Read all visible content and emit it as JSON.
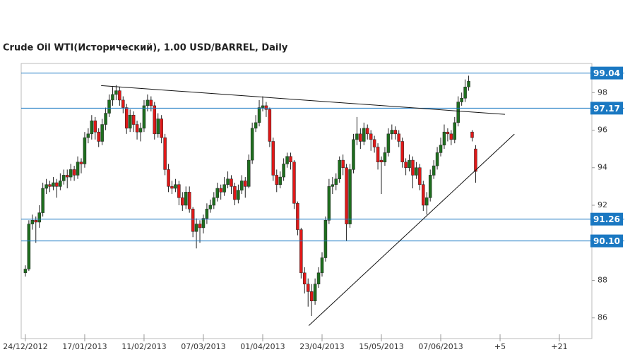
{
  "chart_data": {
    "type": "candlestick",
    "title": "Crude Oil WTI(Исторический), 1.00 USD/BARREL, Daily",
    "open": [
      88.4,
      88.6,
      91.0,
      91.2,
      91.1,
      91.6,
      92.9,
      93.1,
      93.0,
      93.2,
      93.0,
      93.3,
      93.6,
      93.5,
      93.9,
      93.6,
      94.3,
      94.2,
      95.6,
      95.8,
      96.5,
      95.9,
      95.4,
      96.3,
      96.9,
      97.6,
      97.9,
      98.1,
      97.6,
      97.2,
      96.1,
      96.8,
      96.3,
      95.9,
      96.1,
      97.3,
      97.6,
      97.3,
      95.8,
      96.6,
      95.6,
      93.9,
      93.0,
      92.9,
      93.1,
      92.4,
      92.0,
      92.7,
      91.8,
      90.6,
      91.0,
      90.8,
      91.3,
      91.8,
      92.0,
      92.4,
      92.9,
      92.7,
      93.1,
      93.4,
      93.0,
      92.3,
      92.8,
      93.3,
      93.0,
      94.4,
      96.1,
      96.4,
      97.2,
      97.3,
      97.1,
      95.4,
      93.6,
      93.1,
      93.5,
      94.2,
      94.6,
      94.3,
      92.1,
      90.7,
      88.4,
      87.8,
      87.4,
      86.9,
      87.8,
      88.4,
      89.2,
      91.2,
      93.0,
      93.1,
      93.4,
      94.4,
      94.0,
      91.0,
      93.9,
      95.5,
      95.8,
      95.4,
      96.1,
      95.8,
      95.5,
      95.1,
      94.4,
      94.3,
      94.8,
      95.8,
      96.0,
      95.8,
      95.4,
      94.3,
      94.0,
      94.4,
      93.6,
      94.0,
      93.1,
      92.0,
      92.4,
      93.6,
      94.1,
      94.8,
      95.2,
      95.9,
      95.8,
      95.5,
      96.4,
      97.5,
      97.7,
      98.3,
      95.9,
      95.0
    ],
    "high": [
      88.8,
      91.2,
      91.5,
      91.4,
      92.0,
      93.2,
      93.4,
      93.3,
      93.5,
      93.4,
      93.7,
      93.9,
      93.9,
      94.2,
      94.1,
      94.6,
      94.5,
      95.9,
      96.1,
      96.8,
      96.7,
      96.1,
      96.6,
      97.2,
      97.9,
      98.3,
      98.4,
      98.3,
      97.8,
      97.4,
      97.1,
      97.0,
      96.5,
      96.4,
      97.6,
      97.9,
      97.8,
      97.5,
      96.9,
      96.8,
      95.8,
      94.2,
      93.3,
      93.4,
      93.3,
      92.7,
      93.0,
      93.0,
      91.9,
      91.3,
      91.2,
      91.5,
      92.1,
      92.3,
      92.7,
      93.2,
      93.1,
      93.5,
      93.8,
      93.6,
      93.2,
      93.1,
      93.6,
      93.5,
      94.7,
      96.4,
      96.8,
      97.6,
      97.8,
      97.5,
      97.2,
      95.6,
      93.9,
      93.8,
      94.5,
      94.8,
      94.8,
      94.4,
      92.2,
      90.8,
      88.7,
      88.1,
      87.8,
      88.1,
      88.7,
      89.5,
      91.4,
      93.4,
      93.5,
      93.7,
      94.6,
      94.7,
      94.2,
      94.2,
      95.8,
      96.7,
      96.1,
      96.4,
      96.3,
      96.0,
      95.7,
      95.3,
      94.6,
      95.1,
      96.1,
      96.3,
      96.2,
      96.0,
      95.6,
      94.5,
      94.7,
      94.6,
      94.3,
      94.2,
      93.3,
      92.7,
      93.9,
      94.4,
      95.1,
      95.6,
      96.3,
      96.1,
      96.0,
      96.7,
      97.8,
      98.0,
      98.7,
      98.9,
      96.0,
      95.2
    ],
    "low": [
      88.2,
      88.5,
      90.7,
      90.0,
      90.8,
      91.4,
      92.6,
      92.7,
      92.8,
      92.4,
      92.8,
      93.1,
      92.9,
      93.3,
      93.3,
      93.4,
      93.7,
      94.0,
      95.3,
      95.5,
      95.5,
      95.1,
      95.2,
      96.0,
      96.7,
      97.3,
      97.6,
      97.3,
      96.9,
      95.8,
      95.9,
      95.9,
      95.5,
      95.4,
      95.9,
      97.0,
      97.0,
      95.5,
      95.6,
      95.3,
      93.6,
      92.7,
      92.6,
      92.7,
      92.0,
      91.7,
      91.8,
      91.6,
      90.3,
      89.7,
      90.0,
      90.5,
      91.0,
      91.6,
      91.8,
      92.2,
      92.3,
      92.5,
      92.9,
      92.6,
      92.0,
      92.1,
      92.6,
      92.4,
      92.9,
      94.2,
      95.9,
      96.2,
      97.0,
      96.7,
      95.1,
      93.3,
      92.7,
      92.9,
      93.3,
      94.0,
      93.9,
      91.8,
      90.4,
      88.1,
      87.3,
      86.6,
      86.1,
      86.7,
      87.6,
      88.2,
      89.0,
      91.0,
      92.6,
      92.8,
      93.2,
      93.6,
      90.1,
      90.8,
      93.7,
      95.2,
      95.0,
      95.2,
      95.5,
      94.9,
      94.8,
      93.9,
      92.6,
      94.1,
      94.6,
      95.5,
      95.5,
      95.1,
      94.0,
      93.6,
      93.8,
      92.9,
      93.4,
      92.8,
      91.7,
      91.5,
      92.2,
      93.4,
      93.9,
      94.6,
      95.0,
      95.4,
      95.2,
      95.3,
      96.2,
      97.3,
      97.5,
      98.1,
      95.4,
      93.2
    ],
    "close": [
      88.6,
      91.0,
      91.2,
      91.1,
      91.6,
      92.9,
      93.1,
      93.0,
      93.2,
      93.0,
      93.3,
      93.6,
      93.5,
      93.9,
      93.6,
      94.3,
      94.2,
      95.6,
      95.8,
      96.5,
      95.9,
      95.4,
      96.3,
      96.9,
      97.6,
      97.9,
      98.1,
      97.6,
      97.2,
      96.1,
      96.8,
      96.3,
      95.9,
      96.1,
      97.3,
      97.6,
      97.3,
      95.8,
      96.6,
      95.6,
      93.9,
      93.0,
      92.9,
      93.1,
      92.4,
      92.0,
      92.7,
      91.8,
      90.6,
      91.0,
      90.8,
      91.3,
      91.8,
      92.0,
      92.4,
      92.9,
      92.7,
      93.1,
      93.4,
      93.0,
      92.3,
      92.8,
      93.3,
      93.0,
      94.4,
      96.1,
      96.4,
      97.2,
      97.3,
      97.1,
      95.4,
      93.6,
      93.1,
      93.5,
      94.2,
      94.6,
      94.3,
      92.1,
      90.7,
      88.4,
      87.8,
      87.4,
      86.9,
      87.8,
      88.4,
      89.2,
      91.2,
      93.0,
      93.1,
      93.4,
      94.4,
      94.0,
      91.0,
      93.9,
      95.5,
      95.8,
      95.4,
      96.1,
      95.8,
      95.5,
      95.1,
      94.3,
      94.3,
      94.8,
      95.8,
      96.0,
      95.8,
      95.4,
      94.3,
      94.0,
      94.4,
      93.6,
      94.0,
      93.1,
      92.0,
      92.4,
      93.6,
      94.1,
      94.8,
      95.2,
      95.9,
      95.8,
      95.5,
      96.4,
      97.5,
      97.7,
      98.3,
      98.6,
      95.6,
      93.8
    ],
    "up_color": "#1e6e1e",
    "down_color": "#e01818",
    "xlim": [
      -1.2,
      162.3
    ],
    "xticks": [
      {
        "value": 0,
        "label": "24/12/2012"
      },
      {
        "value": 17,
        "label": "17/01/2013"
      },
      {
        "value": 34,
        "label": "11/02/2013"
      },
      {
        "value": 51,
        "label": "07/03/2013"
      },
      {
        "value": 68,
        "label": "01/04/2013"
      },
      {
        "value": 85,
        "label": "23/04/2013"
      },
      {
        "value": 102,
        "label": "15/05/2013"
      },
      {
        "value": 119,
        "label": "07/06/2013"
      },
      {
        "value": 136,
        "label": "+5"
      },
      {
        "value": 153,
        "label": "+21"
      }
    ],
    "ylim": [
      84.9,
      99.55
    ],
    "yticks": [
      86,
      88,
      92,
      94,
      96,
      98
    ],
    "levels": [
      99.04,
      97.17,
      91.26,
      {
        "value": 90.1,
        "label": "90.10"
      }
    ],
    "level_color": "#1a78c2",
    "trendlines": [
      {
        "x": [
          21.7,
          137.4
        ],
        "y": [
          98.37,
          96.84
        ]
      },
      {
        "x": [
          81.2,
          140.1
        ],
        "y": [
          85.59,
          95.79
        ]
      }
    ]
  }
}
